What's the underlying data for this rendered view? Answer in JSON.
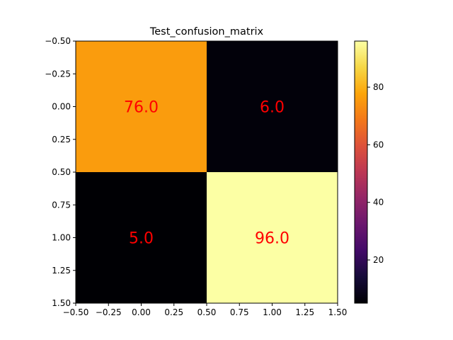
{
  "chart_data": {
    "type": "heatmap",
    "title": "Test_confusion_matrix",
    "xlabel": "",
    "ylabel": "",
    "xlim": [
      -0.5,
      1.5
    ],
    "ylim": [
      1.5,
      -0.5
    ],
    "xticks": [
      "−0.50",
      "−0.25",
      "0.00",
      "0.25",
      "0.50",
      "0.75",
      "1.00",
      "1.25",
      "1.50"
    ],
    "yticks": [
      "−0.50",
      "−0.25",
      "0.00",
      "0.25",
      "0.50",
      "0.75",
      "1.00",
      "1.25",
      "1.50"
    ],
    "matrix": [
      [
        76,
        6
      ],
      [
        5,
        96
      ]
    ],
    "cell_labels": [
      [
        "76.0",
        "6.0"
      ],
      [
        "5.0",
        "96.0"
      ]
    ],
    "colormap": "inferno",
    "colorbar": {
      "range": [
        5,
        96
      ],
      "ticks": [
        {
          "value": 20,
          "label": "20"
        },
        {
          "value": 40,
          "label": "40"
        },
        {
          "value": 60,
          "label": "60"
        },
        {
          "value": 80,
          "label": "80"
        }
      ]
    },
    "annotation_color": "#ff0000"
  }
}
